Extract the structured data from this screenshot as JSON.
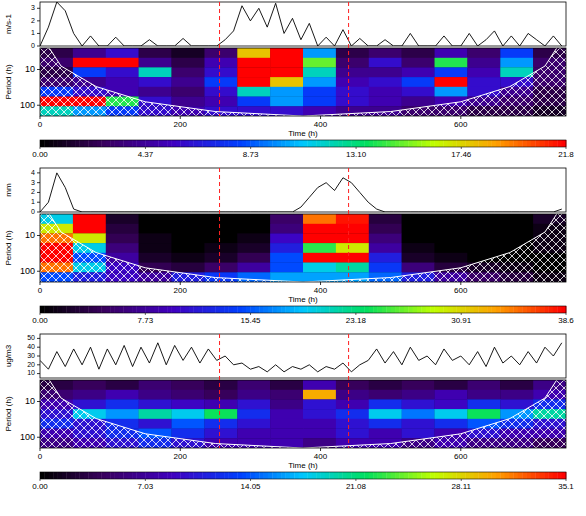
{
  "chart_data": [
    {
      "type": "wavelet",
      "x_label": "Time (h)",
      "y_label": "Period (h)",
      "xlim": [
        0,
        750
      ],
      "xticks": [
        0,
        200,
        400,
        600
      ],
      "ylim": [
        2.5,
        200
      ],
      "yticks": [
        10,
        100
      ],
      "log": "y",
      "vlines": [
        256,
        440
      ],
      "time_edges": [
        0,
        46.9,
        93.8,
        140.6,
        187.5,
        234.4,
        281.3,
        328.1,
        375,
        421.9,
        468.8,
        515.6,
        562.5,
        609.4,
        656.3,
        703.1,
        750
      ],
      "period_edges": [
        2.5,
        4.7,
        8.7,
        16.3,
        30.5,
        57,
        107,
        200
      ],
      "cells": [
        [
          2,
          4,
          6,
          2,
          1,
          3,
          18,
          25,
          10,
          2,
          3,
          2,
          5,
          3,
          8,
          2
        ],
        [
          3,
          25,
          22,
          4,
          2,
          5,
          25,
          25,
          15,
          3,
          6,
          3,
          14,
          4,
          10,
          3
        ],
        [
          2,
          8,
          6,
          12,
          3,
          6,
          22,
          25,
          12,
          4,
          4,
          5,
          8,
          5,
          12,
          3
        ],
        [
          3,
          4,
          5,
          6,
          4,
          8,
          25,
          18,
          10,
          5,
          6,
          8,
          25,
          6,
          6,
          3
        ],
        [
          8,
          6,
          5,
          4,
          3,
          6,
          12,
          10,
          8,
          6,
          5,
          6,
          10,
          6,
          4,
          2
        ],
        [
          25,
          25,
          14,
          6,
          4,
          5,
          8,
          10,
          8,
          6,
          5,
          4,
          5,
          4,
          3,
          2
        ],
        [
          12,
          10,
          8,
          6,
          5,
          6,
          6,
          6,
          5,
          4,
          4,
          3,
          3,
          2,
          2,
          1
        ]
      ],
      "colorbar": {
        "range": [
          0,
          21.8
        ],
        "ticks": [
          {
            "value": 0,
            "label": "0.00"
          },
          4.37,
          8.73,
          {
            "value": 13.1,
            "label": "13.10"
          },
          17.46,
          21.8
        ]
      },
      "coi": {
        "x": [
          0,
          30,
          80,
          150,
          250,
          375,
          500,
          600,
          670,
          720,
          750
        ],
        "period": [
          1,
          8,
          30,
          80,
          150,
          200,
          150,
          80,
          30,
          8,
          1
        ]
      },
      "line": {
        "label": "m/s-1",
        "color": "#000000",
        "ylim": [
          0,
          3.5
        ],
        "yticks": [
          0,
          1,
          2,
          3
        ],
        "x": [
          0,
          12,
          24,
          36,
          48,
          60,
          72,
          84,
          96,
          108,
          120,
          132,
          144,
          156,
          168,
          180,
          192,
          204,
          216,
          228,
          240,
          252,
          264,
          276,
          288,
          300,
          312,
          324,
          336,
          348,
          360,
          372,
          384,
          396,
          408,
          420,
          432,
          444,
          456,
          468,
          480,
          492,
          504,
          516,
          528,
          540,
          552,
          564,
          576,
          588,
          600,
          612,
          624,
          636,
          648,
          660,
          672,
          684,
          696,
          708,
          720,
          732,
          744
        ],
        "values": [
          0,
          1.5,
          3.5,
          2.8,
          1.0,
          0,
          0.8,
          0,
          0,
          0.7,
          0,
          0,
          0,
          0.5,
          0,
          0,
          0,
          0.6,
          0,
          0,
          0,
          0,
          0.5,
          1.2,
          3.2,
          2.0,
          3.0,
          1.5,
          3.4,
          1.0,
          2.2,
          0.5,
          1.8,
          0,
          0.7,
          0,
          1.3,
          0,
          0.6,
          0,
          0,
          0.5,
          0,
          0,
          1.0,
          0,
          0,
          0,
          0.8,
          0,
          0,
          1.0,
          0,
          0.5,
          1.2,
          0,
          0.8,
          0,
          1.0,
          0.5,
          0,
          0.8,
          0
        ]
      }
    },
    {
      "type": "wavelet",
      "x_label": "Time (h)",
      "y_label": "Period (h)",
      "xlim": [
        0,
        750
      ],
      "xticks": [
        0,
        200,
        400,
        600
      ],
      "ylim": [
        2.5,
        200
      ],
      "yticks": [
        10,
        100
      ],
      "log": "y",
      "vlines": [
        256,
        440
      ],
      "time_edges": [
        0,
        46.9,
        93.8,
        140.6,
        187.5,
        234.4,
        281.3,
        328.1,
        375,
        421.9,
        468.8,
        515.6,
        562.5,
        609.4,
        656.3,
        703.1,
        750
      ],
      "period_edges": [
        2.5,
        4.7,
        8.7,
        16.3,
        30.5,
        57,
        107,
        200
      ],
      "cells": [
        [
          20,
          40,
          2,
          0,
          0,
          0,
          0,
          5,
          35,
          38,
          3,
          0,
          0,
          0,
          0,
          2
        ],
        [
          30,
          45,
          3,
          0,
          0,
          0,
          0,
          6,
          40,
          42,
          4,
          0,
          0,
          0,
          0,
          1
        ],
        [
          35,
          30,
          4,
          1,
          0,
          0,
          1,
          10,
          45,
          40,
          6,
          0,
          0,
          0,
          0,
          1
        ],
        [
          40,
          20,
          6,
          1,
          0,
          1,
          2,
          12,
          25,
          30,
          8,
          1,
          0,
          0,
          0,
          1
        ],
        [
          45,
          15,
          8,
          2,
          1,
          2,
          4,
          15,
          42,
          45,
          12,
          2,
          1,
          0,
          0,
          0
        ],
        [
          35,
          20,
          10,
          4,
          3,
          5,
          8,
          15,
          20,
          22,
          14,
          6,
          3,
          2,
          1,
          0
        ],
        [
          15,
          12,
          10,
          8,
          12,
          14,
          16,
          18,
          18,
          18,
          16,
          12,
          8,
          5,
          3,
          1
        ]
      ],
      "colorbar": {
        "range": [
          0,
          38.6
        ],
        "ticks": [
          {
            "value": 0,
            "label": "0.00"
          },
          7.73,
          15.45,
          23.18,
          30.91,
          38.6
        ]
      },
      "coi": {
        "x": [
          0,
          30,
          80,
          150,
          250,
          375,
          500,
          600,
          670,
          720,
          750
        ],
        "period": [
          1,
          8,
          30,
          80,
          150,
          200,
          150,
          80,
          30,
          8,
          1
        ]
      },
      "line": {
        "label": "mm",
        "color": "#000000",
        "ylim": [
          0,
          4.5
        ],
        "yticks": [
          0,
          1,
          2,
          3,
          4
        ],
        "x": [
          0,
          12,
          24,
          36,
          48,
          60,
          72,
          84,
          96,
          108,
          120,
          132,
          144,
          156,
          168,
          180,
          192,
          204,
          216,
          228,
          240,
          252,
          264,
          276,
          288,
          300,
          312,
          324,
          336,
          348,
          360,
          372,
          384,
          396,
          408,
          420,
          432,
          444,
          456,
          468,
          480,
          492,
          504,
          516,
          528,
          540,
          552,
          564,
          576,
          588,
          600,
          612,
          624,
          636,
          648,
          660,
          672,
          684,
          696,
          708,
          720,
          732,
          744
        ],
        "values": [
          0,
          1.0,
          4.0,
          2.5,
          0.3,
          0,
          0,
          0,
          0,
          0,
          0,
          0,
          0,
          0,
          0,
          0,
          0,
          0,
          0,
          0,
          0,
          0,
          0,
          0,
          0,
          0,
          0,
          0,
          0,
          0,
          0,
          0.5,
          1.5,
          2.5,
          3.0,
          2.2,
          3.5,
          3.0,
          2.0,
          1.0,
          0.3,
          0,
          0,
          0,
          0,
          0,
          0,
          0,
          0,
          0,
          0,
          0,
          0,
          0,
          0,
          0,
          0,
          0,
          0,
          0,
          0,
          0,
          0.3
        ]
      }
    },
    {
      "type": "wavelet",
      "x_label": "Time (h)",
      "y_label": "Period (h)",
      "xlim": [
        0,
        750
      ],
      "xticks": [
        0,
        200,
        400,
        600
      ],
      "ylim": [
        2.5,
        200
      ],
      "yticks": [
        10,
        100
      ],
      "log": "y",
      "vlines": [
        256,
        440
      ],
      "time_edges": [
        0,
        46.9,
        93.8,
        140.6,
        187.5,
        234.4,
        281.3,
        328.1,
        375,
        421.9,
        468.8,
        515.6,
        562.5,
        609.4,
        656.3,
        703.1,
        750
      ],
      "period_edges": [
        2.5,
        4.7,
        8.7,
        16.3,
        30.5,
        57,
        107,
        200
      ],
      "cells": [
        [
          3,
          4,
          3,
          5,
          4,
          3,
          5,
          3,
          8,
          4,
          3,
          4,
          3,
          5,
          3,
          6
        ],
        [
          5,
          6,
          8,
          6,
          5,
          4,
          6,
          5,
          30,
          6,
          5,
          6,
          8,
          6,
          6,
          8
        ],
        [
          8,
          10,
          12,
          10,
          9,
          8,
          10,
          6,
          10,
          8,
          12,
          10,
          9,
          12,
          10,
          12
        ],
        [
          10,
          18,
          16,
          20,
          18,
          22,
          12,
          8,
          10,
          12,
          18,
          15,
          18,
          22,
          16,
          20
        ],
        [
          12,
          10,
          12,
          10,
          14,
          12,
          10,
          8,
          8,
          10,
          12,
          10,
          12,
          14,
          12,
          10
        ],
        [
          8,
          10,
          12,
          14,
          12,
          10,
          8,
          8,
          8,
          10,
          8,
          10,
          8,
          10,
          8,
          8
        ],
        [
          6,
          8,
          10,
          12,
          10,
          8,
          8,
          8,
          6,
          8,
          8,
          6,
          8,
          6,
          6,
          4
        ]
      ],
      "colorbar": {
        "range": [
          0,
          35.1
        ],
        "ticks": [
          {
            "value": 0,
            "label": "0.00"
          },
          7.03,
          14.05,
          21.08,
          28.11,
          35.1
        ]
      },
      "coi": {
        "x": [
          0,
          30,
          80,
          150,
          250,
          375,
          500,
          600,
          670,
          720,
          750
        ],
        "period": [
          1,
          8,
          30,
          80,
          150,
          200,
          150,
          80,
          30,
          8,
          1
        ]
      },
      "line": {
        "label": "ug/m3",
        "color": "#000000",
        "ylim": [
          5,
          55
        ],
        "yticks": [
          10,
          20,
          30,
          40,
          50
        ],
        "x": [
          0,
          12,
          24,
          36,
          48,
          60,
          72,
          84,
          96,
          108,
          120,
          132,
          144,
          156,
          168,
          180,
          192,
          204,
          216,
          228,
          240,
          252,
          264,
          276,
          288,
          300,
          312,
          324,
          336,
          348,
          360,
          372,
          384,
          396,
          408,
          420,
          432,
          444,
          456,
          468,
          480,
          492,
          504,
          516,
          528,
          540,
          552,
          564,
          576,
          588,
          600,
          612,
          624,
          636,
          648,
          660,
          672,
          684,
          696,
          708,
          720,
          732,
          744
        ],
        "values": [
          25,
          15,
          35,
          18,
          38,
          20,
          40,
          15,
          38,
          20,
          42,
          18,
          40,
          22,
          45,
          20,
          42,
          25,
          40,
          22,
          38,
          25,
          30,
          20,
          22,
          15,
          18,
          12,
          20,
          12,
          18,
          15,
          20,
          12,
          18,
          15,
          22,
          12,
          20,
          25,
          38,
          22,
          35,
          20,
          40,
          25,
          30,
          20,
          38,
          25,
          30,
          20,
          35,
          18,
          40,
          22,
          30,
          20,
          35,
          22,
          40,
          30,
          45
        ]
      }
    }
  ]
}
